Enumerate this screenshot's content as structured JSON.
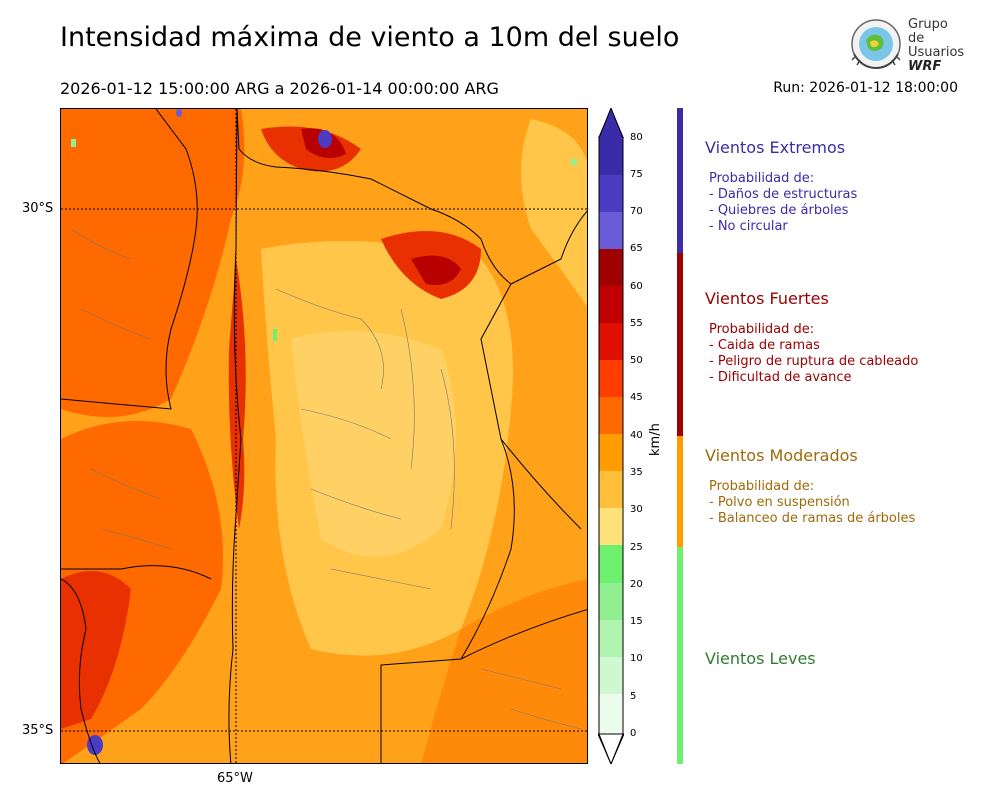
{
  "title": "Intensidad máxima de viento a 10m del suelo",
  "period": "2026-01-12 15:00:00 ARG  a  2026-01-14 00:00:00 ARG",
  "run": "Run: 2026-01-12 18:00:00",
  "logo": {
    "line1": "Grupo de",
    "line2": "Usuarios",
    "line3": "WRF"
  },
  "map": {
    "lat_labels": [
      "30°S",
      "35°S"
    ],
    "lon_labels": [
      "65°W"
    ]
  },
  "colorbar": {
    "unit": "km/h",
    "ticks": [
      "80",
      "75",
      "70",
      "65",
      "60",
      "55",
      "50",
      "45",
      "40",
      "35",
      "30",
      "25",
      "20",
      "15",
      "10",
      "5",
      "0"
    ],
    "colors": [
      "#3a2ca8",
      "#4b3cc3",
      "#6a5bd8",
      "#a00000",
      "#c00000",
      "#e01000",
      "#ff3d00",
      "#ff6a00",
      "#ff9d00",
      "#ffbf3a",
      "#ffe37a",
      "#6ef06e",
      "#90f090",
      "#b0f4b0",
      "#d0f8d0",
      "#ecfcec"
    ]
  },
  "categories": [
    {
      "title": "Vientos Extremos",
      "color": "#3a2ca8",
      "lines": [
        "Probabilidad de:",
        "- Daños de estructuras",
        "- Quiebres de árboles",
        "- No circular"
      ]
    },
    {
      "title": "Vientos Fuertes",
      "color": "#9a0000",
      "lines": [
        "Probabilidad de:",
        "- Caida de ramas",
        "- Peligro de ruptura de cableado",
        "- Dificultad de avance"
      ]
    },
    {
      "title": "Vientos Moderados",
      "color": "#a0690a",
      "lines": [
        "Probabilidad de:",
        "- Polvo en suspensión",
        "- Balanceo de ramas de árboles"
      ]
    },
    {
      "title": "Vientos Leves",
      "color": "#2e7d32",
      "lines": []
    }
  ]
}
